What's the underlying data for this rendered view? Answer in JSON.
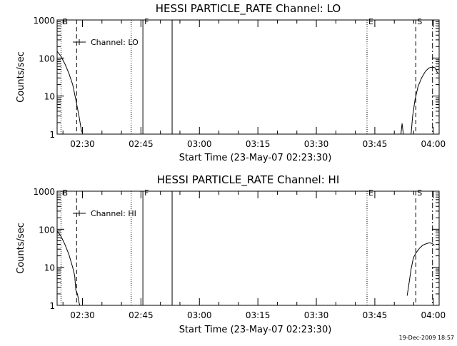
{
  "page": {
    "footer_timestamp": "19-Dec-2009 18:57"
  },
  "chart_data": [
    {
      "type": "line",
      "title": "HESSI PARTICLE_RATE Channel: LO",
      "xlabel": "Start Time (23-May-07 02:23:30)",
      "ylabel": "Counts/sec",
      "x_unit": "minutes",
      "xlim": [
        0,
        98
      ],
      "ylim": [
        1,
        1000
      ],
      "y_scale": "log",
      "x_ticks": [
        {
          "v": 6.5,
          "label": "02:30"
        },
        {
          "v": 21.5,
          "label": "02:45"
        },
        {
          "v": 36.5,
          "label": "03:00"
        },
        {
          "v": 51.5,
          "label": "03:15"
        },
        {
          "v": 66.5,
          "label": "03:30"
        },
        {
          "v": 81.5,
          "label": "03:45"
        },
        {
          "v": 96.5,
          "label": "04:00"
        }
      ],
      "y_ticks": [
        {
          "v": 1,
          "label": "1"
        },
        {
          "v": 10,
          "label": "10"
        },
        {
          "v": 100,
          "label": "100"
        },
        {
          "v": 1000,
          "label": "1000"
        }
      ],
      "legend": {
        "label": "Channel: LO",
        "placement": "top-left"
      },
      "series": [
        {
          "segments": [
            [
              [
                0,
                150
              ],
              [
                1,
                110
              ],
              [
                2,
                70
              ],
              [
                3,
                40
              ],
              [
                4,
                20
              ],
              [
                4.8,
                8
              ],
              [
                5.6,
                3
              ],
              [
                6.2,
                1.3
              ],
              [
                6.6,
                1
              ]
            ],
            [
              [
                88.2,
                1
              ],
              [
                88.5,
                1.9
              ],
              [
                88.8,
                1
              ]
            ],
            [
              [
                90.8,
                1
              ],
              [
                91.2,
                3
              ],
              [
                91.8,
                8
              ],
              [
                92.6,
                18
              ],
              [
                93.5,
                30
              ],
              [
                94.5,
                45
              ],
              [
                95.4,
                55
              ],
              [
                96.3,
                58
              ],
              [
                97,
                55
              ],
              [
                97.6,
                40
              ]
            ]
          ]
        }
      ],
      "markers": [
        {
          "x": 1.0,
          "style": "dotted",
          "label": "B"
        },
        {
          "x": 5.0,
          "style": "dashed",
          "label": ""
        },
        {
          "x": 19.0,
          "style": "dotted",
          "label": ""
        },
        {
          "x": 22.0,
          "style": "solid",
          "label": "F"
        },
        {
          "x": 29.5,
          "style": "solid",
          "label": ""
        },
        {
          "x": 79.5,
          "style": "dotted",
          "label": "E"
        },
        {
          "x": 92.0,
          "style": "dashed",
          "label": "S"
        },
        {
          "x": 96.3,
          "style": "dashdot",
          "label": ""
        }
      ]
    },
    {
      "type": "line",
      "title": "HESSI PARTICLE_RATE Channel: HI",
      "xlabel": "Start Time (23-May-07 02:23:30)",
      "ylabel": "Counts/sec",
      "x_unit": "minutes",
      "xlim": [
        0,
        98
      ],
      "ylim": [
        1,
        1000
      ],
      "y_scale": "log",
      "x_ticks": [
        {
          "v": 6.5,
          "label": "02:30"
        },
        {
          "v": 21.5,
          "label": "02:45"
        },
        {
          "v": 36.5,
          "label": "03:00"
        },
        {
          "v": 51.5,
          "label": "03:15"
        },
        {
          "v": 66.5,
          "label": "03:30"
        },
        {
          "v": 81.5,
          "label": "03:45"
        },
        {
          "v": 96.5,
          "label": "04:00"
        }
      ],
      "y_ticks": [
        {
          "v": 1,
          "label": "1"
        },
        {
          "v": 10,
          "label": "10"
        },
        {
          "v": 100,
          "label": "100"
        },
        {
          "v": 1000,
          "label": "1000"
        }
      ],
      "legend": {
        "label": "Channel: HI",
        "placement": "top-left"
      },
      "series": [
        {
          "segments": [
            [
              [
                0,
                90
              ],
              [
                1,
                65
              ],
              [
                2,
                40
              ],
              [
                3,
                22
              ],
              [
                4,
                10
              ],
              [
                4.5,
                6
              ],
              [
                4.8,
                2.5
              ],
              [
                5.2,
                2
              ],
              [
                5.6,
                1.2
              ],
              [
                5.8,
                1
              ]
            ],
            [
              [
                89.8,
                1.8
              ],
              [
                90.3,
                4
              ],
              [
                90.8,
                9
              ],
              [
                91.4,
                18
              ],
              [
                92.2,
                25
              ],
              [
                93,
                32
              ],
              [
                93.8,
                38
              ],
              [
                94.8,
                42
              ],
              [
                95.6,
                44
              ],
              [
                96.2,
                42
              ],
              [
                96.8,
                38
              ]
            ]
          ]
        }
      ],
      "markers": [
        {
          "x": 1.0,
          "style": "dotted",
          "label": "B"
        },
        {
          "x": 5.0,
          "style": "dashed",
          "label": ""
        },
        {
          "x": 19.0,
          "style": "dotted",
          "label": ""
        },
        {
          "x": 22.0,
          "style": "solid",
          "label": "F"
        },
        {
          "x": 29.5,
          "style": "solid",
          "label": ""
        },
        {
          "x": 79.5,
          "style": "dotted",
          "label": "E"
        },
        {
          "x": 92.0,
          "style": "dashed",
          "label": "S"
        },
        {
          "x": 96.3,
          "style": "dashdot",
          "label": ""
        }
      ]
    }
  ]
}
